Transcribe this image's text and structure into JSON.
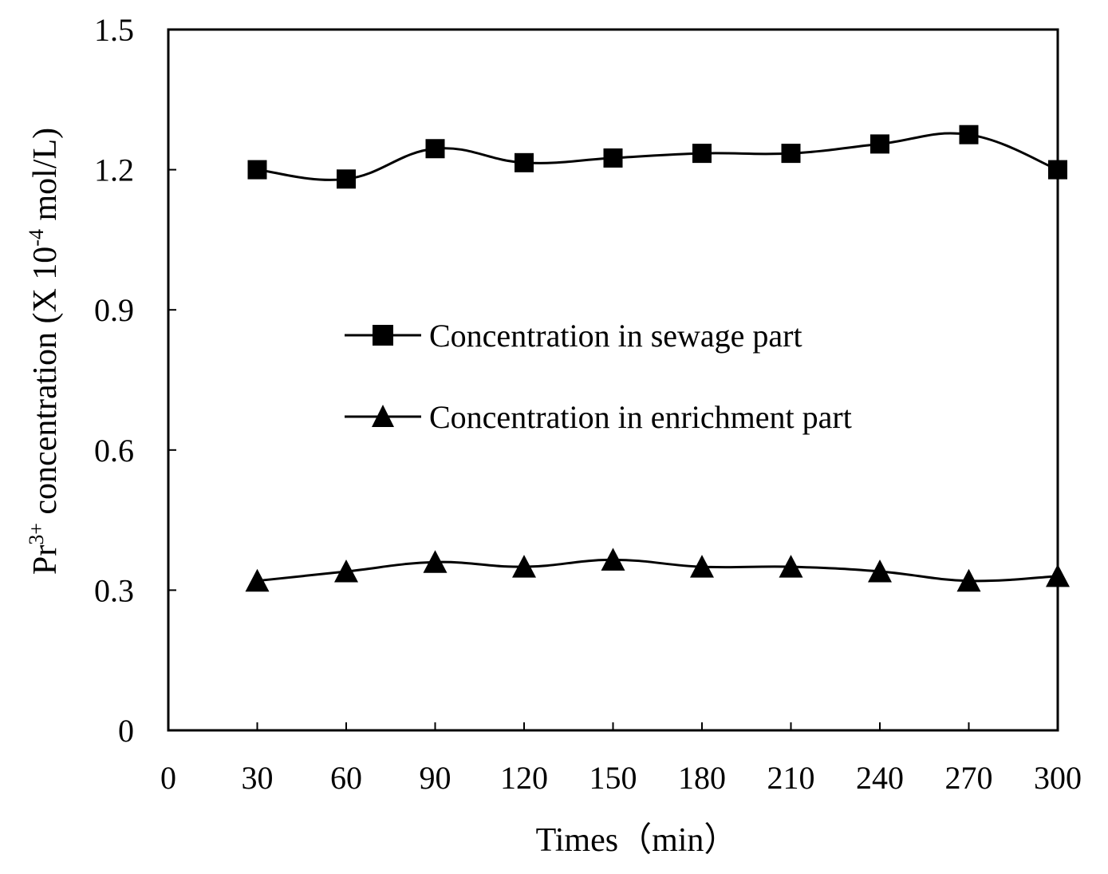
{
  "chart_data": {
    "type": "line",
    "title": "",
    "xlabel": "Times（min）",
    "ylabel": {
      "prefix": "Pr",
      "sup": "3+",
      "middle": " concentration (X 10",
      "sup2": "-4",
      "suffix": " mol/L)"
    },
    "xlim": [
      0,
      300
    ],
    "ylim": [
      0,
      1.5
    ],
    "x_ticks": [
      "0",
      "30",
      "60",
      "90",
      "120",
      "150",
      "180",
      "210",
      "240",
      "270",
      "300"
    ],
    "y_ticks": [
      "0",
      "0.3",
      "0.6",
      "0.9",
      "1.2",
      "1.5"
    ],
    "grid": false,
    "legend_position": "center",
    "x": [
      30,
      60,
      90,
      120,
      150,
      180,
      210,
      240,
      270,
      300
    ],
    "series": [
      {
        "name": "Concentration in sewage part",
        "marker": "square",
        "values": [
          1.2,
          1.18,
          1.245,
          1.215,
          1.225,
          1.235,
          1.235,
          1.255,
          1.275,
          1.2
        ]
      },
      {
        "name": "Concentration in enrichment part",
        "marker": "triangle",
        "values": [
          0.32,
          0.34,
          0.36,
          0.35,
          0.365,
          0.35,
          0.35,
          0.34,
          0.32,
          0.33
        ]
      }
    ],
    "colors": {
      "line": "#000000",
      "marker": "#000000"
    }
  }
}
